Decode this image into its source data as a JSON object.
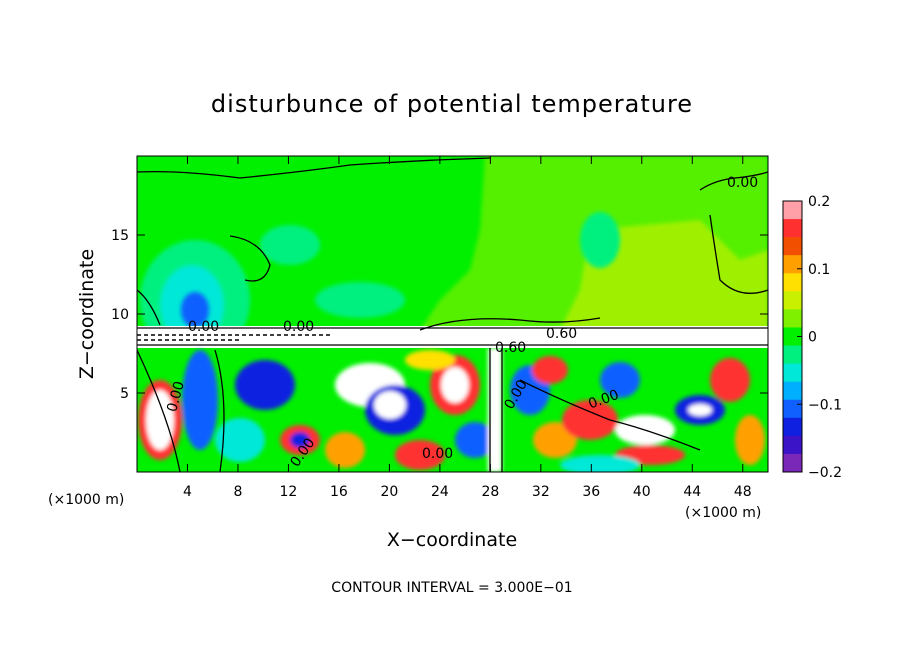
{
  "chart_data": {
    "type": "heatmap",
    "title": "disturbunce of potential temperature",
    "xlabel": "X−coordinate",
    "ylabel": "Z−coordinate",
    "x_unit": "(×1000 m)",
    "y_unit": "(×1000 m)",
    "xlim": [
      0,
      50
    ],
    "ylim": [
      0,
      20
    ],
    "x_ticks": [
      4,
      8,
      12,
      16,
      20,
      24,
      28,
      32,
      36,
      40,
      44,
      48
    ],
    "y_ticks": [
      5,
      10,
      15
    ],
    "colorbar": {
      "range": [
        -0.2,
        0.2
      ],
      "ticks": [
        "0.2",
        "0.1",
        "0",
        "−0.1",
        "−0.2"
      ],
      "colors": [
        "#ff9fa8",
        "#ff3030",
        "#f25000",
        "#ffa000",
        "#ffe000",
        "#c8f000",
        "#7ff000",
        "#00f000",
        "#00f080",
        "#00e8d8",
        "#00b0ff",
        "#1060ff",
        "#1020e0",
        "#3c14c8",
        "#7a28b8"
      ]
    },
    "contour_labels": [
      "0.00",
      "0.00",
      "0.00",
      "0.60",
      "0.60",
      "0.00",
      "0.00",
      "0.00",
      "0.00",
      "0.00"
    ],
    "contour_interval_text": "CONTOUR INTERVAL = 3.000E−01"
  }
}
